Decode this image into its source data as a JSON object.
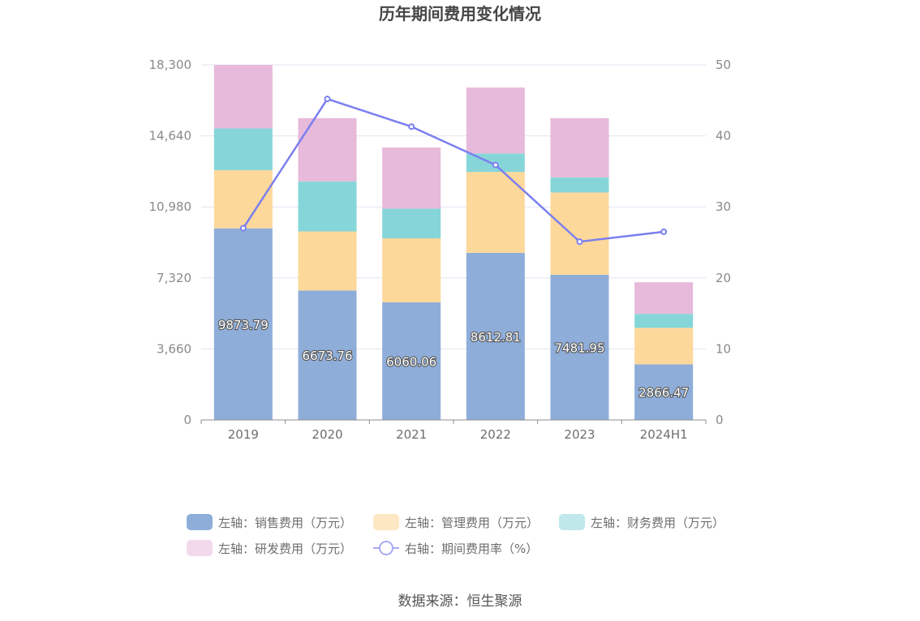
{
  "chart_data": {
    "type": "bar",
    "stacked": true,
    "title": "历年期间费用变化情况",
    "categories": [
      "2019",
      "2020",
      "2021",
      "2022",
      "2023",
      "2024H1"
    ],
    "y_left": {
      "ylim": [
        0,
        18300
      ],
      "ticks": [
        "0",
        "3,660",
        "7,320",
        "10,980",
        "14,640",
        "18,300"
      ]
    },
    "y_right": {
      "ylim": [
        0,
        50
      ],
      "ticks": [
        "0",
        "10",
        "20",
        "30",
        "40",
        "50"
      ]
    },
    "grid": true,
    "legend_position": "bottom",
    "series": [
      {
        "name": "左轴：销售费用（万元）",
        "axis": "left",
        "kind": "bar",
        "color": "#8eadd9",
        "values": [
          9873.79,
          6673.76,
          6060.06,
          8612.81,
          7481.95,
          2866.47
        ],
        "labels": [
          "9873.79",
          "6673.76",
          "6060.06",
          "8612.81",
          "7481.95",
          "2866.47"
        ]
      },
      {
        "name": "左轴：管理费用（万元）",
        "axis": "left",
        "kind": "bar",
        "color": "#fdd89b",
        "values": [
          3000,
          3040,
          3300,
          4170,
          4240,
          1880
        ]
      },
      {
        "name": "左轴：财务费用（万元）",
        "axis": "left",
        "kind": "bar",
        "color": "#86d6d9",
        "values": [
          2150,
          2580,
          1530,
          950,
          780,
          720
        ]
      },
      {
        "name": "左轴：研发费用（万元）",
        "axis": "left",
        "kind": "bar",
        "color": "#e7b9da",
        "values": [
          3270,
          3260,
          3150,
          3400,
          3050,
          1630
        ]
      },
      {
        "name": "右轴：期间费用率（%）",
        "axis": "right",
        "kind": "line",
        "color": "#7b7fef",
        "values": [
          27.0,
          45.2,
          41.3,
          35.9,
          25.1,
          26.5
        ]
      }
    ]
  },
  "source": "数据来源：恒生聚源"
}
